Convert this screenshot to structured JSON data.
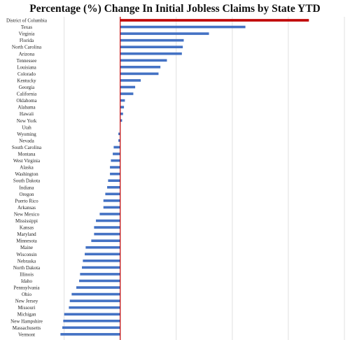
{
  "chart_data": {
    "type": "bar",
    "orientation": "horizontal",
    "title": "Percentage (%) Change In Initial Jobless Claims by State YTD",
    "xlabel": "",
    "ylabel": "",
    "xlim": [
      -80,
      240
    ],
    "grid": "vertical",
    "legend": "none",
    "colors": {
      "default_bar": "#4472C4",
      "highlight_bar": "#C00000",
      "zero_line": "#C00000",
      "grid": "#D9D9D9"
    },
    "categories": [
      "District of Columbia",
      "Texas",
      "Virginia",
      "Florida",
      "North Carolina",
      "Arizona",
      "Tennessee",
      "Louisiana",
      "Colorado",
      "Kentucky",
      "Georgia",
      "California",
      "Oklahoma",
      "Alabama",
      "Hawaii",
      "New York",
      "Utah",
      "Wyoming",
      "Nevada",
      "South Carolina",
      "Montana",
      "West Virginia",
      "Alaska",
      "Washington",
      "South Dakota",
      "Indiana",
      "Oregon",
      "Puerto Rico",
      "Arkansas",
      "New Mexico",
      "Mississippi",
      "Kansas",
      "Maryland",
      "Minnesota",
      "Maine",
      "Wisconsin",
      "Nebraska",
      "North Dakota",
      "Illinois",
      "Idaho",
      "Pennsylvania",
      "Ohio",
      "New Jersey",
      "Missouri",
      "Michigan",
      "New Hampshire",
      "Massachusetts",
      "Vermont"
    ],
    "values": [
      202,
      134,
      95,
      68,
      67,
      66,
      50,
      43,
      41,
      22,
      16,
      14,
      5,
      4,
      3,
      2,
      0,
      -2,
      -2,
      -7,
      -8,
      -10,
      -11,
      -11,
      -13,
      -14,
      -16,
      -18,
      -18,
      -22,
      -26,
      -28,
      -28,
      -31,
      -37,
      -38,
      -40,
      -41,
      -43,
      -44,
      -47,
      -52,
      -54,
      -55,
      -60,
      -61,
      -62,
      -64
    ],
    "highlight_index": 0
  }
}
